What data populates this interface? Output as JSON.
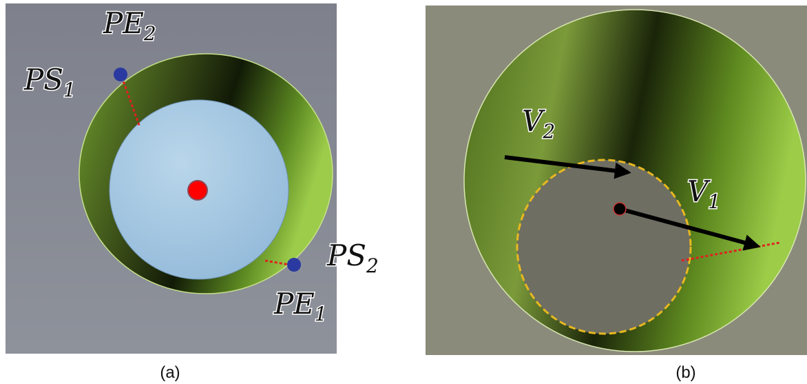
{
  "panel_a": {
    "labels": [
      {
        "base": "PE",
        "sub": "2"
      },
      {
        "base": "PS",
        "sub": "1"
      },
      {
        "base": "PS",
        "sub": "2"
      },
      {
        "base": "PE",
        "sub": "1"
      }
    ],
    "caption": "(a)"
  },
  "panel_b": {
    "labels": [
      {
        "base": "V",
        "sub": "2"
      },
      {
        "base": "V",
        "sub": "1"
      }
    ],
    "caption": "(b)"
  }
}
